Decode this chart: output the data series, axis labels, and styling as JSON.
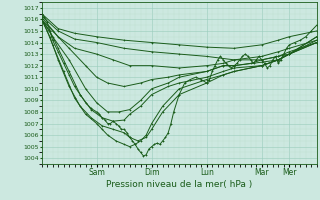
{
  "title": "Pression niveau de la mer( hPa )",
  "bg_color": "#cce8e0",
  "plot_bg_color": "#cce8e0",
  "grid_major_color": "#99ccbb",
  "grid_minor_color": "#bbddcc",
  "line_color": "#1a5c1a",
  "ylim": [
    1003.5,
    1017.5
  ],
  "yticks": [
    1004,
    1005,
    1006,
    1007,
    1008,
    1009,
    1010,
    1011,
    1012,
    1013,
    1014,
    1015,
    1016,
    1017
  ],
  "xlim_days": [
    0,
    5.0
  ],
  "xtick_positions_days": [
    1.0,
    2.0,
    3.0,
    4.0,
    4.5
  ],
  "xtick_labels": [
    "Sam",
    "Dim",
    "Lun",
    "Mar",
    "Mer"
  ],
  "lines": [
    {
      "points_days": [
        [
          0.0,
          1016.5
        ],
        [
          0.3,
          1015.2
        ],
        [
          0.6,
          1014.8
        ],
        [
          1.0,
          1014.5
        ],
        [
          1.5,
          1014.2
        ],
        [
          2.0,
          1014.0
        ],
        [
          2.5,
          1013.8
        ],
        [
          3.0,
          1013.6
        ],
        [
          3.5,
          1013.5
        ],
        [
          4.0,
          1013.8
        ],
        [
          4.3,
          1014.2
        ],
        [
          4.5,
          1014.5
        ],
        [
          5.0,
          1015.0
        ]
      ]
    },
    {
      "points_days": [
        [
          0.0,
          1016.3
        ],
        [
          0.3,
          1015.0
        ],
        [
          0.6,
          1014.3
        ],
        [
          1.0,
          1014.0
        ],
        [
          1.5,
          1013.5
        ],
        [
          2.0,
          1013.2
        ],
        [
          2.5,
          1013.0
        ],
        [
          3.0,
          1012.8
        ],
        [
          3.5,
          1012.5
        ],
        [
          4.0,
          1012.8
        ],
        [
          4.3,
          1013.2
        ],
        [
          4.5,
          1013.5
        ],
        [
          5.0,
          1014.2
        ]
      ]
    },
    {
      "points_days": [
        [
          0.0,
          1016.2
        ],
        [
          0.3,
          1014.5
        ],
        [
          0.6,
          1013.5
        ],
        [
          1.0,
          1013.0
        ],
        [
          1.3,
          1012.5
        ],
        [
          1.6,
          1012.0
        ],
        [
          2.0,
          1012.0
        ],
        [
          2.5,
          1011.8
        ],
        [
          3.0,
          1012.0
        ],
        [
          3.3,
          1012.2
        ],
        [
          3.5,
          1012.5
        ],
        [
          4.0,
          1012.5
        ],
        [
          4.3,
          1012.8
        ],
        [
          4.5,
          1013.2
        ],
        [
          5.0,
          1014.0
        ]
      ]
    },
    {
      "points_days": [
        [
          0.0,
          1016.0
        ],
        [
          0.2,
          1015.0
        ],
        [
          0.5,
          1013.5
        ],
        [
          0.8,
          1012.0
        ],
        [
          1.0,
          1011.0
        ],
        [
          1.2,
          1010.5
        ],
        [
          1.5,
          1010.2
        ],
        [
          1.8,
          1010.5
        ],
        [
          2.0,
          1010.8
        ],
        [
          2.3,
          1011.0
        ],
        [
          2.5,
          1011.2
        ],
        [
          3.0,
          1011.5
        ],
        [
          3.3,
          1012.0
        ],
        [
          3.5,
          1012.0
        ],
        [
          3.8,
          1012.2
        ],
        [
          4.0,
          1012.5
        ],
        [
          4.3,
          1012.8
        ],
        [
          4.5,
          1013.0
        ],
        [
          5.0,
          1014.0
        ]
      ]
    },
    {
      "points_days": [
        [
          0.0,
          1016.0
        ],
        [
          0.2,
          1014.5
        ],
        [
          0.5,
          1012.5
        ],
        [
          0.8,
          1010.0
        ],
        [
          1.0,
          1008.8
        ],
        [
          1.2,
          1008.0
        ],
        [
          1.4,
          1008.0
        ],
        [
          1.6,
          1008.2
        ],
        [
          1.8,
          1009.0
        ],
        [
          2.0,
          1010.0
        ],
        [
          2.3,
          1010.5
        ],
        [
          2.5,
          1011.0
        ],
        [
          3.0,
          1011.5
        ],
        [
          3.3,
          1012.0
        ],
        [
          3.5,
          1012.0
        ],
        [
          4.0,
          1012.3
        ],
        [
          4.3,
          1012.5
        ],
        [
          4.5,
          1013.0
        ],
        [
          5.0,
          1014.0
        ]
      ]
    },
    {
      "points_days": [
        [
          0.0,
          1016.0
        ],
        [
          0.15,
          1015.0
        ],
        [
          0.3,
          1013.5
        ],
        [
          0.5,
          1011.5
        ],
        [
          0.7,
          1009.5
        ],
        [
          0.9,
          1008.2
        ],
        [
          1.1,
          1007.5
        ],
        [
          1.3,
          1007.2
        ],
        [
          1.5,
          1007.3
        ],
        [
          1.6,
          1007.8
        ],
        [
          1.8,
          1008.5
        ],
        [
          2.0,
          1009.5
        ],
        [
          2.3,
          1010.2
        ],
        [
          2.5,
          1010.5
        ],
        [
          3.0,
          1011.0
        ],
        [
          3.3,
          1011.5
        ],
        [
          3.5,
          1011.8
        ],
        [
          4.0,
          1012.0
        ],
        [
          4.3,
          1012.5
        ],
        [
          4.5,
          1013.0
        ],
        [
          5.0,
          1014.2
        ]
      ]
    },
    {
      "points_days": [
        [
          0.0,
          1016.0
        ],
        [
          0.15,
          1014.5
        ],
        [
          0.3,
          1012.5
        ],
        [
          0.5,
          1010.2
        ],
        [
          0.7,
          1008.5
        ],
        [
          0.9,
          1007.5
        ],
        [
          1.1,
          1006.8
        ],
        [
          1.3,
          1006.5
        ],
        [
          1.5,
          1006.2
        ],
        [
          1.6,
          1005.8
        ],
        [
          1.75,
          1005.5
        ],
        [
          1.9,
          1005.8
        ],
        [
          2.0,
          1006.5
        ],
        [
          2.2,
          1008.0
        ],
        [
          2.5,
          1009.5
        ],
        [
          3.0,
          1010.5
        ],
        [
          3.3,
          1011.2
        ],
        [
          3.5,
          1011.5
        ],
        [
          4.0,
          1012.0
        ],
        [
          4.3,
          1012.5
        ],
        [
          4.5,
          1013.0
        ],
        [
          5.0,
          1014.5
        ]
      ]
    },
    {
      "points_days": [
        [
          0.0,
          1016.0
        ],
        [
          0.1,
          1015.0
        ],
        [
          0.2,
          1013.8
        ],
        [
          0.4,
          1011.5
        ],
        [
          0.6,
          1009.2
        ],
        [
          0.8,
          1007.8
        ],
        [
          1.0,
          1007.0
        ],
        [
          1.1,
          1006.5
        ],
        [
          1.2,
          1006.0
        ],
        [
          1.35,
          1005.5
        ],
        [
          1.5,
          1005.2
        ],
        [
          1.6,
          1005.0
        ],
        [
          1.7,
          1005.2
        ],
        [
          1.8,
          1005.5
        ],
        [
          1.9,
          1006.0
        ],
        [
          2.0,
          1007.0
        ],
        [
          2.2,
          1008.5
        ],
        [
          2.5,
          1010.0
        ],
        [
          3.0,
          1010.8
        ],
        [
          3.3,
          1011.2
        ],
        [
          3.5,
          1011.5
        ],
        [
          4.0,
          1012.0
        ],
        [
          4.3,
          1012.5
        ],
        [
          4.5,
          1013.0
        ],
        [
          5.0,
          1014.5
        ]
      ]
    },
    {
      "points_days": [
        [
          0.0,
          1016.5
        ],
        [
          0.05,
          1016.2
        ],
        [
          0.1,
          1015.8
        ],
        [
          0.15,
          1015.0
        ],
        [
          0.2,
          1014.2
        ],
        [
          0.3,
          1013.2
        ],
        [
          0.4,
          1012.2
        ],
        [
          0.5,
          1011.2
        ],
        [
          0.6,
          1010.2
        ],
        [
          0.7,
          1009.5
        ],
        [
          0.8,
          1008.8
        ],
        [
          0.9,
          1008.3
        ],
        [
          1.0,
          1008.0
        ],
        [
          1.05,
          1007.8
        ],
        [
          1.1,
          1007.5
        ],
        [
          1.15,
          1007.3
        ],
        [
          1.2,
          1007.0
        ],
        [
          1.25,
          1007.0
        ],
        [
          1.3,
          1007.2
        ],
        [
          1.35,
          1007.0
        ],
        [
          1.4,
          1006.8
        ],
        [
          1.45,
          1006.5
        ],
        [
          1.5,
          1006.5
        ],
        [
          1.55,
          1006.2
        ],
        [
          1.6,
          1005.8
        ],
        [
          1.65,
          1005.5
        ],
        [
          1.7,
          1005.2
        ],
        [
          1.75,
          1004.8
        ],
        [
          1.8,
          1004.5
        ],
        [
          1.85,
          1004.2
        ],
        [
          1.9,
          1004.3
        ],
        [
          1.95,
          1004.8
        ],
        [
          2.0,
          1005.0
        ],
        [
          2.05,
          1005.2
        ],
        [
          2.1,
          1005.3
        ],
        [
          2.15,
          1005.2
        ],
        [
          2.2,
          1005.5
        ],
        [
          2.25,
          1005.8
        ],
        [
          2.3,
          1006.2
        ],
        [
          2.35,
          1007.0
        ],
        [
          2.4,
          1008.0
        ],
        [
          2.5,
          1009.5
        ],
        [
          2.6,
          1010.5
        ],
        [
          2.7,
          1010.8
        ],
        [
          2.8,
          1011.0
        ],
        [
          2.9,
          1010.8
        ],
        [
          3.0,
          1010.5
        ],
        [
          3.05,
          1010.8
        ],
        [
          3.1,
          1011.5
        ],
        [
          3.15,
          1012.0
        ],
        [
          3.2,
          1012.5
        ],
        [
          3.25,
          1012.8
        ],
        [
          3.3,
          1012.5
        ],
        [
          3.35,
          1012.2
        ],
        [
          3.4,
          1012.0
        ],
        [
          3.45,
          1011.8
        ],
        [
          3.5,
          1012.0
        ],
        [
          3.55,
          1012.2
        ],
        [
          3.6,
          1012.5
        ],
        [
          3.65,
          1012.8
        ],
        [
          3.7,
          1013.0
        ],
        [
          3.75,
          1012.8
        ],
        [
          3.8,
          1012.5
        ],
        [
          3.85,
          1012.2
        ],
        [
          3.9,
          1012.5
        ],
        [
          3.95,
          1012.8
        ],
        [
          4.0,
          1012.5
        ],
        [
          4.05,
          1012.2
        ],
        [
          4.1,
          1011.8
        ],
        [
          4.15,
          1012.0
        ],
        [
          4.2,
          1012.5
        ],
        [
          4.25,
          1012.8
        ],
        [
          4.3,
          1012.2
        ],
        [
          4.35,
          1012.5
        ],
        [
          4.4,
          1013.0
        ],
        [
          4.45,
          1013.5
        ],
        [
          4.5,
          1013.8
        ],
        [
          4.6,
          1014.0
        ],
        [
          4.7,
          1014.2
        ],
        [
          4.8,
          1014.5
        ],
        [
          4.9,
          1015.0
        ],
        [
          5.0,
          1015.5
        ]
      ]
    }
  ]
}
